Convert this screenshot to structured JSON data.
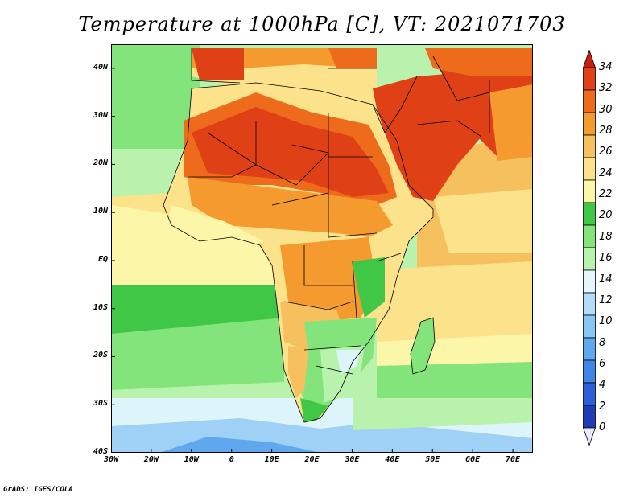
{
  "title": "Temperature at 1000hPa [C], VT: 2021071703",
  "credit": "GrADS: IGES/COLA",
  "axes": {
    "lat_labels": [
      "40N",
      "30N",
      "20N",
      "10N",
      "EQ",
      "10S",
      "20S",
      "30S",
      "40S"
    ],
    "lat_values": [
      40,
      30,
      20,
      10,
      0,
      -10,
      -20,
      -30,
      -40
    ],
    "lon_labels": [
      "30W",
      "20W",
      "10W",
      "0",
      "10E",
      "20E",
      "30E",
      "40E",
      "50E",
      "60E",
      "70E"
    ],
    "lon_values": [
      -30,
      -20,
      -10,
      0,
      10,
      20,
      30,
      40,
      50,
      60,
      70
    ],
    "lon_range": [
      -30,
      75
    ],
    "lat_range": [
      -40,
      45
    ]
  },
  "colorbar": {
    "levels": [
      "0",
      "2",
      "4",
      "6",
      "8",
      "10",
      "12",
      "14",
      "16",
      "18",
      "20",
      "22",
      "24",
      "26",
      "28",
      "30",
      "32",
      "34"
    ],
    "colors": [
      "#0d0f70",
      "#1f3cb4",
      "#2f5fd8",
      "#3f84e6",
      "#5ea8ef",
      "#88c6f5",
      "#b4dcf8",
      "#e2f6fb",
      "#b9f2ad",
      "#82e47a",
      "#40c746",
      "#fbf6a8",
      "#fce28a",
      "#f7c05e",
      "#f49a2f",
      "#ee6b1c",
      "#e04016",
      "#c81e0b"
    ]
  },
  "palette": {
    "sea_blue": "#5fa8ee",
    "sea_light": "#9fd0f5",
    "sea_pale": "#def4fb",
    "green_light": "#b9f2ad",
    "green": "#82e47a",
    "green_dark": "#40c746",
    "yellow": "#fbf6a8",
    "yellow_orange": "#fce28a",
    "orange_light": "#f7c05e",
    "orange": "#f49a2f",
    "orange_dark": "#ee6b1c",
    "red": "#e04016",
    "deep_red": "#c81e0b"
  }
}
